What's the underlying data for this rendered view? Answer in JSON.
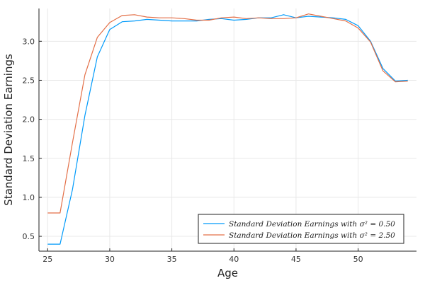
{
  "chart_data": {
    "type": "line",
    "title": "",
    "xlabel": "Age",
    "ylabel": "Standard Deviation Earnings",
    "xlim": [
      24.3,
      54.7
    ],
    "ylim": [
      0.31,
      3.42
    ],
    "xticks": [
      25,
      30,
      35,
      40,
      45,
      50
    ],
    "yticks": [
      0.5,
      1.0,
      1.5,
      2.0,
      2.5,
      3.0
    ],
    "xtick_labels": [
      "25",
      "30",
      "35",
      "40",
      "45",
      "50"
    ],
    "ytick_labels": [
      "0.5",
      "1.0",
      "1.5",
      "2.0",
      "2.5",
      "3.0"
    ],
    "grid": true,
    "legend_position": "bottom-right",
    "x": [
      25,
      26,
      27,
      28,
      29,
      30,
      31,
      32,
      33,
      34,
      35,
      36,
      37,
      38,
      39,
      40,
      41,
      42,
      43,
      44,
      45,
      46,
      47,
      48,
      49,
      50,
      51,
      52,
      53,
      54
    ],
    "series": [
      {
        "name": "Standard Deviation Earnings with σ² = 0.50",
        "color": "#009AFA",
        "values": [
          0.4,
          0.4,
          1.1,
          2.05,
          2.8,
          3.15,
          3.25,
          3.26,
          3.28,
          3.27,
          3.26,
          3.26,
          3.26,
          3.28,
          3.29,
          3.27,
          3.28,
          3.3,
          3.3,
          3.34,
          3.3,
          3.32,
          3.31,
          3.3,
          3.28,
          3.2,
          3.0,
          2.65,
          2.49,
          2.5
        ]
      },
      {
        "name": "Standard Deviation Earnings with σ² = 2.50",
        "color": "#E36F47",
        "values": [
          0.8,
          0.8,
          1.7,
          2.57,
          3.05,
          3.24,
          3.33,
          3.34,
          3.31,
          3.3,
          3.3,
          3.29,
          3.27,
          3.27,
          3.3,
          3.31,
          3.29,
          3.3,
          3.29,
          3.29,
          3.3,
          3.35,
          3.32,
          3.29,
          3.26,
          3.17,
          2.99,
          2.62,
          2.48,
          2.49
        ]
      }
    ]
  }
}
